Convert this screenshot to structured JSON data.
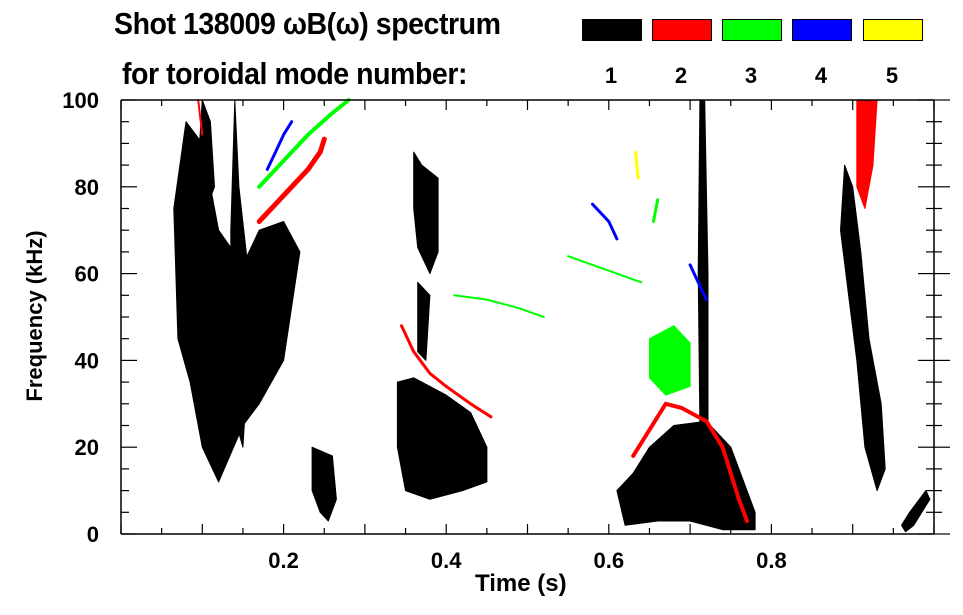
{
  "chart_data": {
    "type": "heatmap",
    "title": "Shot 138009 ωB(ω) spectrum",
    "subtitle": "for toroidal mode number:",
    "xlabel": "Time (s)",
    "ylabel": "Frequency (kHz)",
    "xlim": [
      0,
      1.0
    ],
    "ylim": [
      0,
      100
    ],
    "xticks": [
      0.2,
      0.4,
      0.6,
      0.8
    ],
    "xtick_labels": [
      "0.2",
      "0.4",
      "0.6",
      "0.8"
    ],
    "yticks": [
      0,
      20,
      40,
      60,
      80,
      100
    ],
    "ytick_labels": [
      "0",
      "20",
      "40",
      "60",
      "80",
      "100"
    ],
    "grid": false,
    "legend_position": "top-right",
    "legend": [
      {
        "mode": "1",
        "color": "#000000"
      },
      {
        "mode": "2",
        "color": "#ff0000"
      },
      {
        "mode": "3",
        "color": "#00ff00"
      },
      {
        "mode": "4",
        "color": "#0000ff"
      },
      {
        "mode": "5",
        "color": "#ffff00"
      }
    ],
    "features": [
      {
        "mode": 1,
        "kind": "patch",
        "points": [
          [
            0.07,
            45
          ],
          [
            0.065,
            75
          ],
          [
            0.08,
            95
          ],
          [
            0.1,
            90
          ],
          [
            0.12,
            70
          ],
          [
            0.15,
            62
          ],
          [
            0.17,
            70
          ],
          [
            0.2,
            72
          ],
          [
            0.22,
            65
          ],
          [
            0.2,
            40
          ],
          [
            0.17,
            30
          ],
          [
            0.15,
            25
          ],
          [
            0.12,
            12
          ],
          [
            0.1,
            20
          ],
          [
            0.085,
            35
          ]
        ]
      },
      {
        "mode": 1,
        "kind": "patch",
        "points": [
          [
            0.1,
            100
          ],
          [
            0.11,
            95
          ],
          [
            0.115,
            80
          ],
          [
            0.105,
            75
          ],
          [
            0.095,
            85
          ]
        ]
      },
      {
        "mode": 1,
        "kind": "patch",
        "points": [
          [
            0.14,
            100
          ],
          [
            0.145,
            80
          ],
          [
            0.16,
            55
          ],
          [
            0.155,
            35
          ],
          [
            0.15,
            20
          ],
          [
            0.135,
            30
          ],
          [
            0.135,
            70
          ]
        ]
      },
      {
        "mode": 1,
        "kind": "patch",
        "points": [
          [
            0.235,
            20
          ],
          [
            0.26,
            18
          ],
          [
            0.265,
            8
          ],
          [
            0.255,
            3
          ],
          [
            0.245,
            5
          ],
          [
            0.235,
            10
          ]
        ]
      },
      {
        "mode": 1,
        "kind": "patch",
        "points": [
          [
            0.34,
            35
          ],
          [
            0.36,
            36
          ],
          [
            0.4,
            32
          ],
          [
            0.43,
            28
          ],
          [
            0.45,
            20
          ],
          [
            0.45,
            12
          ],
          [
            0.42,
            10
          ],
          [
            0.38,
            8
          ],
          [
            0.35,
            10
          ],
          [
            0.34,
            20
          ]
        ]
      },
      {
        "mode": 1,
        "kind": "patch",
        "points": [
          [
            0.36,
            88
          ],
          [
            0.37,
            85
          ],
          [
            0.39,
            82
          ],
          [
            0.39,
            65
          ],
          [
            0.38,
            60
          ],
          [
            0.365,
            66
          ],
          [
            0.36,
            75
          ]
        ]
      },
      {
        "mode": 1,
        "kind": "patch",
        "points": [
          [
            0.365,
            58
          ],
          [
            0.38,
            55
          ],
          [
            0.375,
            40
          ],
          [
            0.365,
            42
          ]
        ]
      },
      {
        "mode": 1,
        "kind": "patch",
        "points": [
          [
            0.61,
            10
          ],
          [
            0.63,
            14
          ],
          [
            0.65,
            20
          ],
          [
            0.68,
            25
          ],
          [
            0.72,
            26
          ],
          [
            0.75,
            20
          ],
          [
            0.78,
            5
          ],
          [
            0.78,
            1
          ],
          [
            0.74,
            1
          ],
          [
            0.7,
            3
          ],
          [
            0.66,
            3
          ],
          [
            0.62,
            2
          ]
        ]
      },
      {
        "mode": 1,
        "kind": "patch",
        "points": [
          [
            0.712,
            100
          ],
          [
            0.718,
            100
          ],
          [
            0.722,
            60
          ],
          [
            0.722,
            25
          ],
          [
            0.712,
            25
          ],
          [
            0.71,
            60
          ]
        ]
      },
      {
        "mode": 1,
        "kind": "patch",
        "points": [
          [
            0.89,
            85
          ],
          [
            0.9,
            80
          ],
          [
            0.91,
            65
          ],
          [
            0.92,
            45
          ],
          [
            0.935,
            30
          ],
          [
            0.94,
            15
          ],
          [
            0.93,
            10
          ],
          [
            0.915,
            20
          ],
          [
            0.905,
            40
          ],
          [
            0.895,
            55
          ],
          [
            0.885,
            70
          ]
        ]
      },
      {
        "mode": 1,
        "kind": "patch",
        "points": [
          [
            0.96,
            2
          ],
          [
            0.97,
            5
          ],
          [
            0.99,
            10
          ],
          [
            0.995,
            8
          ],
          [
            0.975,
            2
          ],
          [
            0.965,
            0.5
          ]
        ]
      },
      {
        "mode": 2,
        "kind": "line",
        "width": 5,
        "points": [
          [
            0.17,
            72
          ],
          [
            0.19,
            76
          ],
          [
            0.21,
            80
          ],
          [
            0.23,
            84
          ],
          [
            0.245,
            88
          ],
          [
            0.25,
            91
          ]
        ]
      },
      {
        "mode": 2,
        "kind": "line",
        "width": 3,
        "points": [
          [
            0.345,
            48
          ],
          [
            0.36,
            42
          ],
          [
            0.38,
            37
          ],
          [
            0.4,
            34
          ],
          [
            0.43,
            30
          ],
          [
            0.455,
            27
          ]
        ]
      },
      {
        "mode": 2,
        "kind": "line",
        "width": 4,
        "points": [
          [
            0.63,
            18
          ],
          [
            0.65,
            24
          ],
          [
            0.67,
            30
          ],
          [
            0.69,
            29
          ],
          [
            0.72,
            26
          ],
          [
            0.74,
            20
          ],
          [
            0.76,
            8
          ],
          [
            0.77,
            3
          ]
        ]
      },
      {
        "mode": 2,
        "kind": "patch",
        "points": [
          [
            0.905,
            100
          ],
          [
            0.93,
            100
          ],
          [
            0.925,
            85
          ],
          [
            0.915,
            75
          ],
          [
            0.905,
            80
          ]
        ]
      },
      {
        "mode": 2,
        "kind": "line",
        "width": 2,
        "points": [
          [
            0.095,
            100
          ],
          [
            0.1,
            92
          ]
        ]
      },
      {
        "mode": 3,
        "kind": "line",
        "width": 4,
        "points": [
          [
            0.17,
            80
          ],
          [
            0.2,
            86
          ],
          [
            0.23,
            92
          ],
          [
            0.26,
            97
          ],
          [
            0.28,
            100
          ]
        ]
      },
      {
        "mode": 3,
        "kind": "line",
        "width": 2,
        "points": [
          [
            0.41,
            55
          ],
          [
            0.45,
            54
          ],
          [
            0.49,
            52
          ],
          [
            0.52,
            50
          ]
        ]
      },
      {
        "mode": 3,
        "kind": "line",
        "width": 2,
        "points": [
          [
            0.55,
            64
          ],
          [
            0.58,
            62
          ],
          [
            0.61,
            60
          ],
          [
            0.64,
            58
          ]
        ]
      },
      {
        "mode": 3,
        "kind": "patch",
        "points": [
          [
            0.65,
            45
          ],
          [
            0.68,
            48
          ],
          [
            0.7,
            44
          ],
          [
            0.7,
            34
          ],
          [
            0.67,
            32
          ],
          [
            0.65,
            36
          ]
        ]
      },
      {
        "mode": 3,
        "kind": "line",
        "width": 3,
        "points": [
          [
            0.655,
            72
          ],
          [
            0.66,
            77
          ]
        ]
      },
      {
        "mode": 4,
        "kind": "line",
        "width": 3,
        "points": [
          [
            0.18,
            84
          ],
          [
            0.19,
            88
          ],
          [
            0.2,
            92
          ],
          [
            0.21,
            95
          ]
        ]
      },
      {
        "mode": 4,
        "kind": "line",
        "width": 3,
        "points": [
          [
            0.58,
            76
          ],
          [
            0.6,
            72
          ],
          [
            0.61,
            68
          ]
        ]
      },
      {
        "mode": 4,
        "kind": "line",
        "width": 3,
        "points": [
          [
            0.7,
            62
          ],
          [
            0.71,
            58
          ],
          [
            0.72,
            54
          ]
        ]
      },
      {
        "mode": 5,
        "kind": "line",
        "width": 3,
        "points": [
          [
            0.633,
            88
          ],
          [
            0.636,
            82
          ]
        ]
      }
    ]
  }
}
